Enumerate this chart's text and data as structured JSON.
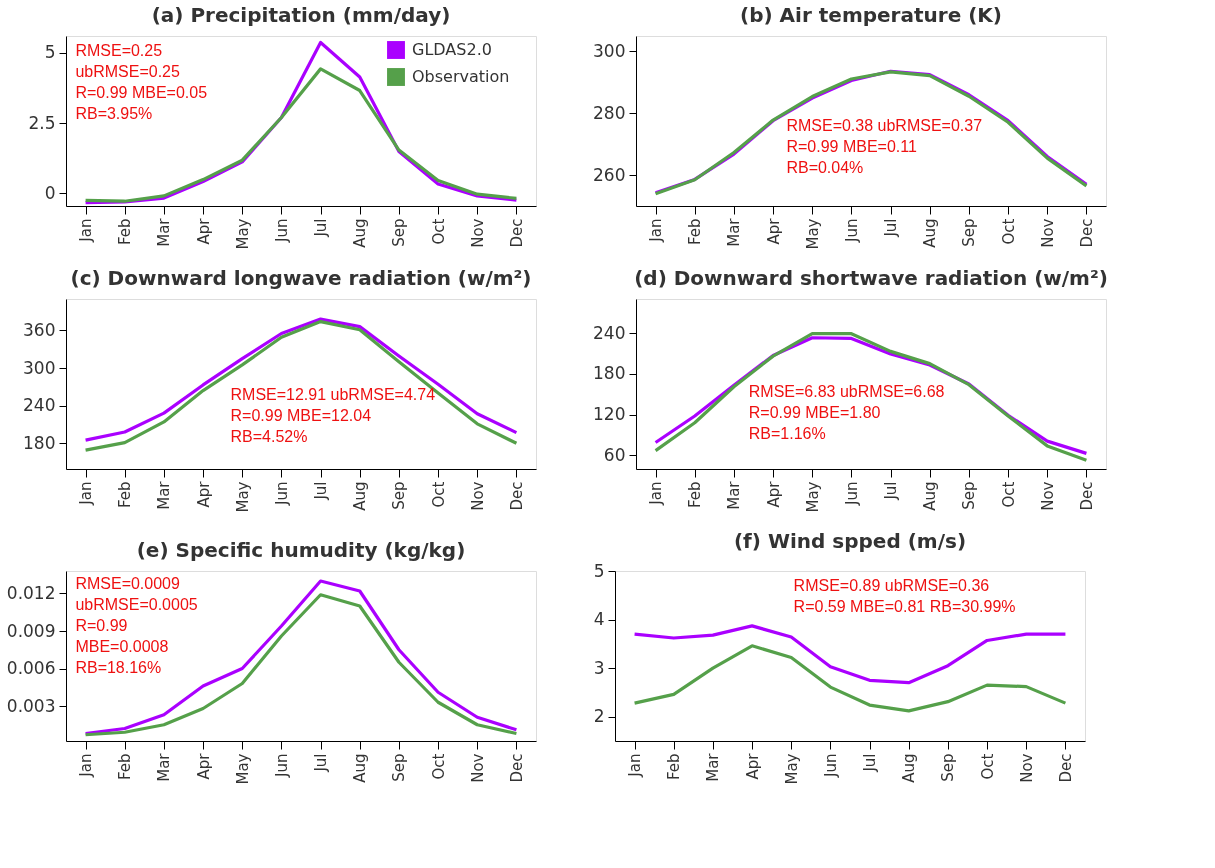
{
  "chart_data": [
    {
      "type": "line",
      "title": "(a) Precipitation (mm/day)",
      "categories": [
        "Jan",
        "Feb",
        "Mar",
        "Apr",
        "May",
        "Jun",
        "Jul",
        "Aug",
        "Sep",
        "Oct",
        "Nov",
        "Dec"
      ],
      "ylim": [
        -0.45,
        5.6
      ],
      "yticks": [
        0,
        2.5,
        5
      ],
      "grid": false,
      "legend": "top right",
      "series": [
        {
          "name": "GLDAS2.0",
          "color": "#aa00ff",
          "values": [
            -0.33,
            -0.3,
            -0.17,
            0.42,
            1.12,
            2.7,
            5.37,
            4.14,
            1.49,
            0.33,
            -0.09,
            -0.24
          ]
        },
        {
          "name": "Observation",
          "color": "#55a04a",
          "values": [
            -0.25,
            -0.28,
            -0.09,
            0.49,
            1.18,
            2.7,
            4.43,
            3.66,
            1.54,
            0.46,
            -0.03,
            -0.18
          ]
        }
      ],
      "annotations": [
        "RMSE=0.25\nubRMSE=0.25\nR=0.99 MBE=0.05\nRB=3.95%"
      ]
    },
    {
      "type": "line",
      "title": "(b) Air temperature (K)",
      "categories": [
        "Jan",
        "Feb",
        "Mar",
        "Apr",
        "May",
        "Jun",
        "Jul",
        "Aug",
        "Sep",
        "Oct",
        "Nov",
        "Dec"
      ],
      "ylim": [
        250,
        305
      ],
      "yticks": [
        260,
        280,
        300
      ],
      "grid": false,
      "series": [
        {
          "color": "#aa00ff",
          "values": [
            254.3,
            258.6,
            266.8,
            277.6,
            284.9,
            290.6,
            293.6,
            292.5,
            286.0,
            277.6,
            266.0,
            257.0
          ]
        },
        {
          "color": "#55a04a",
          "values": [
            254.0,
            258.5,
            267.3,
            277.8,
            285.4,
            291.1,
            293.4,
            292.2,
            285.5,
            277.1,
            265.5,
            256.5
          ]
        }
      ],
      "annotations": [
        "RMSE=0.38 ubRMSE=0.37\nR=0.99 MBE=0.11\nRB=0.04%"
      ]
    },
    {
      "type": "line",
      "title": "(c) Downward longwave radiation (w/m²)",
      "categories": [
        "Jan",
        "Feb",
        "Mar",
        "Apr",
        "May",
        "Jun",
        "Jul",
        "Aug",
        "Sep",
        "Oct",
        "Nov",
        "Dec"
      ],
      "ylim": [
        139,
        410
      ],
      "yticks": [
        180,
        240,
        300,
        360
      ],
      "grid": false,
      "series": [
        {
          "color": "#aa00ff",
          "values": [
            185,
            198,
            228,
            273,
            315,
            355,
            378,
            366,
            319,
            274,
            227,
            197
          ]
        },
        {
          "color": "#55a04a",
          "values": [
            169,
            181,
            214,
            264,
            305,
            349,
            374,
            361,
            310,
            260,
            211,
            180
          ]
        }
      ],
      "annotations": [
        "RMSE=12.91 ubRMSE=4.74\nR=0.99 MBE=12.04\nRB=4.52%"
      ]
    },
    {
      "type": "line",
      "title": "(d) Downward shortwave radiation (w/m²)",
      "categories": [
        "Jan",
        "Feb",
        "Mar",
        "Apr",
        "May",
        "Jun",
        "Jul",
        "Aug",
        "Sep",
        "Oct",
        "Nov",
        "Dec"
      ],
      "ylim": [
        40,
        290
      ],
      "yticks": [
        60,
        120,
        180,
        240
      ],
      "grid": false,
      "series": [
        {
          "color": "#aa00ff",
          "values": [
            79,
            118,
            163,
            207,
            233,
            232,
            209,
            193,
            165,
            119,
            81,
            63
          ]
        },
        {
          "color": "#55a04a",
          "values": [
            67,
            108,
            161,
            206,
            239,
            239,
            213,
            195,
            164,
            118,
            74,
            53
          ]
        }
      ],
      "annotations": [
        "RMSE=6.83 ubRMSE=6.68\nR=0.99 MBE=1.80\nRB=1.16%"
      ]
    },
    {
      "type": "line",
      "title": "(e) Specific humudity (kg/kg)",
      "categories": [
        "Jan",
        "Feb",
        "Mar",
        "Apr",
        "May",
        "Jun",
        "Jul",
        "Aug",
        "Sep",
        "Oct",
        "Nov",
        "Dec"
      ],
      "ylim": [
        0.0002,
        0.0138
      ],
      "yticks": [
        0.003,
        0.006,
        0.009,
        0.012
      ],
      "grid": false,
      "series": [
        {
          "color": "#aa00ff",
          "values": [
            0.0008,
            0.0012,
            0.0023,
            0.0046,
            0.006,
            0.0094,
            0.013,
            0.0122,
            0.0075,
            0.0041,
            0.0021,
            0.0011
          ]
        },
        {
          "color": "#55a04a",
          "values": [
            0.0007,
            0.0009,
            0.0015,
            0.0028,
            0.0048,
            0.0086,
            0.0119,
            0.011,
            0.0065,
            0.0033,
            0.0015,
            0.0008
          ]
        }
      ],
      "annotations": [
        "RMSE=0.0009\nubRMSE=0.0005\nR=0.99\nMBE=0.0008\nRB=18.16%"
      ]
    },
    {
      "type": "line",
      "title": "(f) Wind spped (m/s)",
      "categories": [
        "Jan",
        "Feb",
        "Mar",
        "Apr",
        "May",
        "Jun",
        "Jul",
        "Aug",
        "Sep",
        "Oct",
        "Nov",
        "Dec"
      ],
      "ylim": [
        1.5,
        5
      ],
      "yticks": [
        2,
        3,
        4,
        5
      ],
      "grid": false,
      "series": [
        {
          "color": "#aa00ff",
          "values": [
            3.7,
            3.62,
            3.68,
            3.87,
            3.64,
            3.03,
            2.75,
            2.7,
            3.05,
            3.57,
            3.7,
            3.7
          ]
        },
        {
          "color": "#55a04a",
          "values": [
            2.28,
            2.46,
            3.0,
            3.46,
            3.22,
            2.61,
            2.24,
            2.12,
            2.31,
            2.65,
            2.62,
            2.28
          ]
        }
      ],
      "annotations": [
        "RMSE=0.89 ubRMSE=0.36\nR=0.59 MBE=0.81 RB=30.99%"
      ]
    }
  ]
}
